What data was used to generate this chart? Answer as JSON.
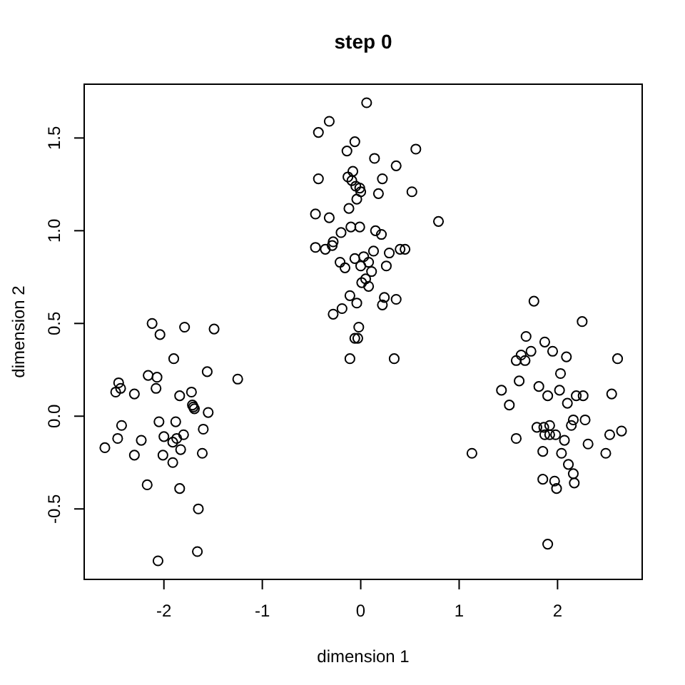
{
  "chart_data": {
    "type": "scatter",
    "title": "step 0",
    "xlabel": "dimension 1",
    "ylabel": "dimension 2",
    "color": "#000000",
    "marker": "circle",
    "xlim": [
      -2.81,
      2.86
    ],
    "ylim": [
      -0.88,
      1.79
    ],
    "xticks": [
      -2,
      -1,
      0,
      1,
      2
    ],
    "yticks": [
      {
        "value": -0.5,
        "label": "-0.5"
      },
      {
        "value": 0,
        "label": "0.0"
      },
      {
        "value": 0.5,
        "label": "0.5"
      },
      {
        "value": 1,
        "label": "1.0"
      },
      {
        "value": 1.5,
        "label": "1.5"
      }
    ],
    "x": [
      -2.12,
      -2.04,
      -1.79,
      -1.49,
      -1.9,
      -2.16,
      -2.07,
      -1.56,
      -1.25,
      -2.46,
      -2.44,
      -2.49,
      -2.3,
      -2.08,
      -1.72,
      -1.84,
      -1.71,
      -1.69,
      -1.7,
      -1.55,
      -2.43,
      -2.05,
      -1.88,
      -1.6,
      -2.47,
      -2.23,
      -2.0,
      -1.91,
      -1.87,
      -1.8,
      -2.6,
      -2.3,
      -2.01,
      -1.83,
      -1.61,
      -1.91,
      -2.17,
      -1.84,
      -1.65,
      -1.66,
      -2.06,
      0.06,
      -0.32,
      -0.43,
      -0.06,
      -0.14,
      0.56,
      0.14,
      0.36,
      -0.08,
      -0.43,
      -0.13,
      -0.09,
      -0.05,
      -0.01,
      0.0,
      0.22,
      0.18,
      0.52,
      -0.04,
      -0.12,
      -0.46,
      -0.32,
      0.79,
      -0.1,
      -0.01,
      -0.2,
      0.15,
      0.21,
      -0.28,
      -0.29,
      -0.46,
      -0.36,
      0.13,
      0.29,
      0.4,
      0.45,
      -0.06,
      0.03,
      -0.21,
      -0.16,
      0.08,
      0.0,
      0.26,
      0.11,
      0.05,
      0.01,
      0.08,
      -0.11,
      -0.04,
      0.24,
      0.36,
      0.22,
      -0.19,
      -0.28,
      -0.02,
      -0.06,
      -0.03,
      -0.11,
      0.34,
      1.76,
      2.25,
      1.68,
      1.87,
      1.95,
      1.73,
      1.63,
      1.58,
      1.67,
      2.09,
      2.61,
      2.03,
      1.61,
      1.81,
      1.43,
      2.02,
      1.9,
      2.19,
      2.26,
      2.55,
      2.1,
      1.51,
      2.16,
      2.28,
      2.14,
      1.79,
      1.86,
      1.92,
      1.87,
      1.92,
      1.98,
      2.65,
      2.53,
      1.58,
      2.07,
      2.31,
      1.13,
      1.85,
      2.04,
      2.49,
      2.11,
      2.16,
      1.85,
      1.97,
      2.17,
      1.99,
      1.9
    ],
    "values": [
      0.5,
      0.44,
      0.48,
      0.47,
      0.31,
      0.22,
      0.21,
      0.24,
      0.2,
      0.18,
      0.15,
      0.13,
      0.12,
      0.15,
      0.13,
      0.11,
      0.06,
      0.04,
      0.05,
      0.02,
      -0.05,
      -0.03,
      -0.03,
      -0.07,
      -0.12,
      -0.13,
      -0.11,
      -0.14,
      -0.12,
      -0.1,
      -0.17,
      -0.21,
      -0.21,
      -0.18,
      -0.2,
      -0.25,
      -0.37,
      -0.39,
      -0.5,
      -0.73,
      -0.78,
      1.69,
      1.59,
      1.53,
      1.48,
      1.43,
      1.44,
      1.39,
      1.35,
      1.32,
      1.28,
      1.29,
      1.27,
      1.24,
      1.23,
      1.21,
      1.28,
      1.2,
      1.21,
      1.17,
      1.12,
      1.09,
      1.07,
      1.05,
      1.02,
      1.02,
      0.99,
      1.0,
      0.98,
      0.94,
      0.92,
      0.91,
      0.9,
      0.89,
      0.88,
      0.9,
      0.9,
      0.85,
      0.86,
      0.83,
      0.8,
      0.83,
      0.81,
      0.81,
      0.78,
      0.74,
      0.72,
      0.7,
      0.65,
      0.61,
      0.64,
      0.63,
      0.6,
      0.58,
      0.55,
      0.48,
      0.42,
      0.42,
      0.31,
      0.31,
      0.62,
      0.51,
      0.43,
      0.4,
      0.35,
      0.35,
      0.33,
      0.3,
      0.3,
      0.32,
      0.31,
      0.23,
      0.19,
      0.16,
      0.14,
      0.14,
      0.11,
      0.11,
      0.11,
      0.12,
      0.07,
      0.06,
      -0.02,
      -0.02,
      -0.05,
      -0.06,
      -0.06,
      -0.05,
      -0.1,
      -0.1,
      -0.1,
      -0.08,
      -0.1,
      -0.12,
      -0.13,
      -0.15,
      -0.2,
      -0.19,
      -0.2,
      -0.2,
      -0.26,
      -0.31,
      -0.34,
      -0.35,
      -0.36,
      -0.39,
      -0.69
    ]
  }
}
